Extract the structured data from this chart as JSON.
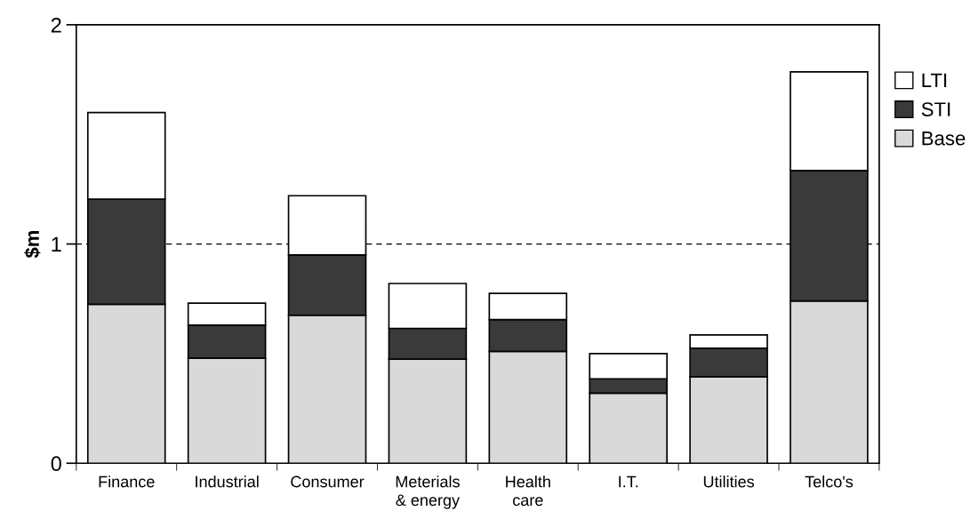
{
  "chart_data": {
    "type": "bar",
    "stacked": true,
    "ylabel": "$m",
    "categories": [
      "Finance",
      "Industrial",
      "Consumer",
      "Meterials\n& energy",
      "Health\ncare",
      "I.T.",
      "Utilities",
      "Telco's"
    ],
    "series": [
      {
        "name": "Base",
        "color": "#d9d9d9",
        "values": [
          0.725,
          0.48,
          0.675,
          0.475,
          0.51,
          0.32,
          0.395,
          0.74
        ]
      },
      {
        "name": "STI",
        "color": "#3a3a3a",
        "values": [
          0.48,
          0.15,
          0.275,
          0.14,
          0.145,
          0.065,
          0.13,
          0.595
        ]
      },
      {
        "name": "LTI",
        "color": "#ffffff",
        "values": [
          0.395,
          0.1,
          0.27,
          0.205,
          0.12,
          0.115,
          0.06,
          0.45
        ]
      }
    ],
    "ylim": [
      0,
      2
    ],
    "yticks": [
      0,
      1,
      2
    ],
    "ref_lines": [
      {
        "axis": "y",
        "value": 1,
        "color": "#000000",
        "line_style": "dashed"
      }
    ],
    "grid": false,
    "legend": "top right"
  }
}
